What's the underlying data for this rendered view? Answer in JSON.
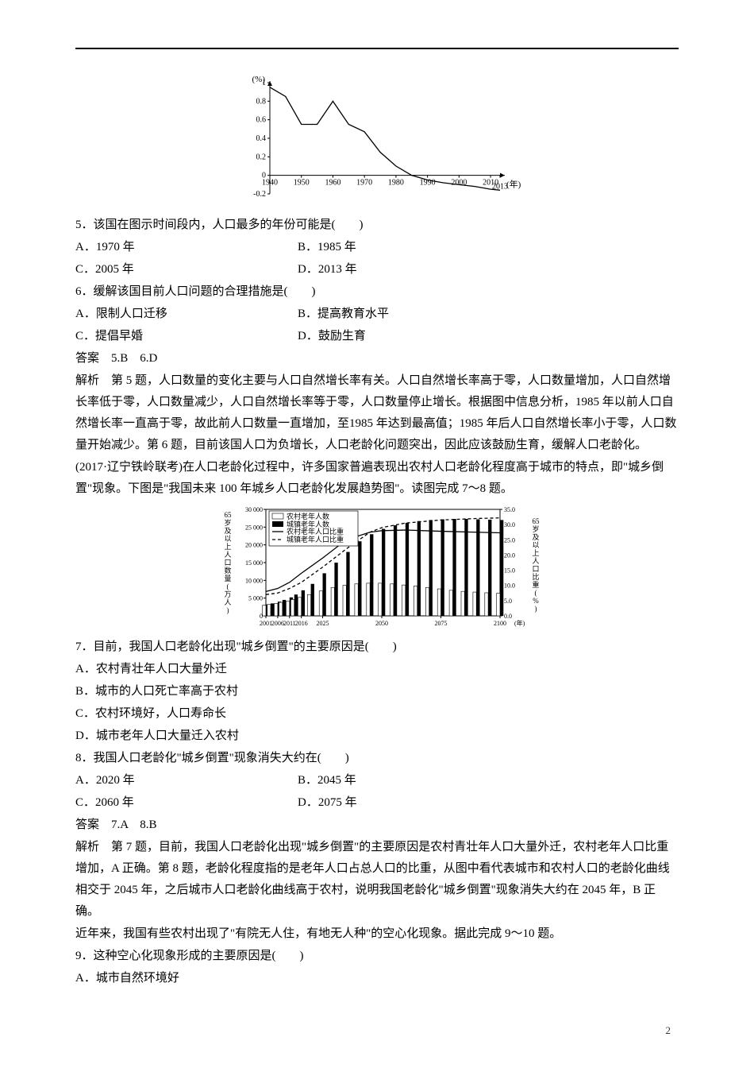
{
  "chart1": {
    "type": "line",
    "ylabel": "(%)",
    "xlabel": "(年)",
    "xlim": [
      1940,
      2013
    ],
    "ylim": [
      -0.2,
      1.0
    ],
    "xticks": [
      1940,
      1950,
      1960,
      1970,
      1980,
      1990,
      2000,
      2010,
      2013
    ],
    "xtick_labels": [
      "1940",
      "1950",
      "1960",
      "1970",
      "1980",
      "1990",
      "2000",
      "2010",
      "2013"
    ],
    "yticks": [
      -0.2,
      0,
      0.2,
      0.4,
      0.6,
      0.8,
      1.0
    ],
    "ytick_labels": [
      "-0.2",
      "0",
      "0.2",
      "0.4",
      "0.6",
      "0.8",
      "1"
    ],
    "points": [
      [
        1940,
        0.95
      ],
      [
        1945,
        0.85
      ],
      [
        1950,
        0.55
      ],
      [
        1955,
        0.55
      ],
      [
        1960,
        0.8
      ],
      [
        1965,
        0.55
      ],
      [
        1970,
        0.47
      ],
      [
        1975,
        0.25
      ],
      [
        1980,
        0.1
      ],
      [
        1985,
        0.0
      ],
      [
        1990,
        -0.05
      ],
      [
        1995,
        -0.08
      ],
      [
        2000,
        -0.1
      ],
      [
        2005,
        -0.12
      ],
      [
        2010,
        -0.15
      ],
      [
        2013,
        -0.16
      ]
    ],
    "line_color": "#000000",
    "axis_color": "#000000",
    "tick_fontsize": 10,
    "label_fontsize": 11,
    "line_width": 1.3
  },
  "q5": {
    "stem": "5．该国在图示时间段内，人口最多的年份可能是(　　)",
    "optA": "A．1970 年",
    "optB": "B．1985 年",
    "optC": "C．2005 年",
    "optD": "D．2013 年"
  },
  "q6": {
    "stem": "6．缓解该国目前人口问题的合理措施是(　　)",
    "optA": "A．限制人口迁移",
    "optB": "B．提高教育水平",
    "optC": "C．提倡早婚",
    "optD": "D．鼓励生育"
  },
  "ans56": "答案　5.B　6.D",
  "exp56": "解析　第 5 题，人口数量的变化主要与人口自然增长率有关。人口自然增长率高于零，人口数量增加，人口自然增长率低于零，人口数量减少，人口自然增长率等于零，人口数量停止增长。根据图中信息分析，1985 年以前人口自然增长率一直高于零，故此前人口数量一直增加，至1985 年达到最高值；1985 年后人口自然增长率小于零，人口数量开始减少。第 6 题，目前该国人口为负增长，人口老龄化问题突出，因此应该鼓励生育，缓解人口老龄化。",
  "intro78": "(2017·辽宁铁岭联考)在人口老龄化过程中，许多国家普遍表现出农村人口老龄化程度高于城市的特点，即\"城乡倒置\"现象。下图是\"我国未来 100 年城乡人口老龄化发展趋势图\"。读图完成 7～8 题。",
  "chart2": {
    "type": "combo-bar-line",
    "left_axis_label_lines": [
      "65",
      "岁",
      "及",
      "以",
      "上",
      "人",
      "口",
      "数",
      "量",
      "(",
      "万",
      "人",
      ")"
    ],
    "right_axis_label_lines": [
      "65",
      "岁",
      "及",
      "以",
      "上",
      "人",
      "口",
      "比",
      "重",
      "(",
      "%",
      ")"
    ],
    "left_ylim": [
      0,
      30000
    ],
    "left_yticks": [
      0,
      5000,
      10000,
      15000,
      20000,
      25000,
      30000
    ],
    "left_ytick_labels": [
      "0",
      "5 000",
      "10 000",
      "15 000",
      "20 000",
      "25 000",
      "30 000"
    ],
    "right_ylim": [
      0,
      35
    ],
    "right_yticks": [
      0,
      5,
      10,
      15,
      20,
      25,
      30,
      35
    ],
    "right_ytick_labels": [
      "0.0",
      "5.0",
      "10.0",
      "15.0",
      "20.0",
      "25.0",
      "30.0",
      "35.0"
    ],
    "xticks": [
      2001,
      2006,
      2011,
      2016,
      2025,
      2050,
      2075,
      2100
    ],
    "xtick_labels": [
      "2001",
      "2006",
      "2011",
      "2016",
      "2025",
      "2050",
      "2075",
      "2100"
    ],
    "xlabel_suffix": "(年)",
    "legend": [
      "农村老年人数",
      "城镇老年人数",
      "农村老年人口比重",
      "城镇老年人口比重"
    ],
    "bars_rural": [
      [
        2001,
        3000
      ],
      [
        2003,
        3200
      ],
      [
        2006,
        3500
      ],
      [
        2008,
        3800
      ],
      [
        2011,
        4200
      ],
      [
        2013,
        4600
      ],
      [
        2016,
        5200
      ],
      [
        2020,
        6000
      ],
      [
        2025,
        7000
      ],
      [
        2030,
        8000
      ],
      [
        2035,
        8600
      ],
      [
        2040,
        9000
      ],
      [
        2045,
        9200
      ],
      [
        2050,
        9200
      ],
      [
        2055,
        9000
      ],
      [
        2060,
        8700
      ],
      [
        2065,
        8400
      ],
      [
        2070,
        8000
      ],
      [
        2075,
        7600
      ],
      [
        2080,
        7200
      ],
      [
        2085,
        6900
      ],
      [
        2090,
        6700
      ],
      [
        2095,
        6500
      ],
      [
        2100,
        6400
      ]
    ],
    "bars_urban": [
      [
        2001,
        3200
      ],
      [
        2003,
        3500
      ],
      [
        2006,
        4000
      ],
      [
        2008,
        4500
      ],
      [
        2011,
        5200
      ],
      [
        2013,
        6000
      ],
      [
        2016,
        7200
      ],
      [
        2020,
        9000
      ],
      [
        2025,
        12000
      ],
      [
        2030,
        15000
      ],
      [
        2035,
        18000
      ],
      [
        2040,
        21000
      ],
      [
        2045,
        23000
      ],
      [
        2050,
        24500
      ],
      [
        2055,
        25500
      ],
      [
        2060,
        26200
      ],
      [
        2065,
        26700
      ],
      [
        2070,
        27000
      ],
      [
        2075,
        27200
      ],
      [
        2080,
        27300
      ],
      [
        2085,
        27300
      ],
      [
        2090,
        27200
      ],
      [
        2095,
        27100
      ],
      [
        2100,
        27000
      ]
    ],
    "line_rural_pct": [
      [
        2001,
        8
      ],
      [
        2006,
        9
      ],
      [
        2011,
        11
      ],
      [
        2016,
        14
      ],
      [
        2025,
        19
      ],
      [
        2035,
        25
      ],
      [
        2045,
        27.5
      ],
      [
        2050,
        28
      ],
      [
        2060,
        28.2
      ],
      [
        2075,
        27.8
      ],
      [
        2090,
        27.5
      ],
      [
        2100,
        27.3
      ]
    ],
    "line_urban_pct": [
      [
        2001,
        7
      ],
      [
        2006,
        7.5
      ],
      [
        2011,
        9
      ],
      [
        2016,
        11
      ],
      [
        2025,
        16
      ],
      [
        2035,
        22
      ],
      [
        2045,
        27.5
      ],
      [
        2050,
        29
      ],
      [
        2060,
        30.5
      ],
      [
        2075,
        31.5
      ],
      [
        2090,
        32
      ],
      [
        2100,
        32.2
      ]
    ],
    "bar_rural_fill": "#ffffff",
    "bar_rural_stroke": "#000000",
    "bar_urban_fill": "#000000",
    "line_rural_color": "#000000",
    "line_urban_color": "#000000",
    "line_urban_dash": "4,3",
    "axis_color": "#000000",
    "tick_fontsize": 8,
    "legend_fontsize": 9
  },
  "q7": {
    "stem": "7．目前，我国人口老龄化出现\"城乡倒置\"的主要原因是(　　)",
    "optA": "A．农村青壮年人口大量外迁",
    "optB": "B．城市的人口死亡率高于农村",
    "optC": "C．农村环境好，人口寿命长",
    "optD": "D．城市老年人口大量迁入农村"
  },
  "q8": {
    "stem": "8．我国人口老龄化\"城乡倒置\"现象消失大约在(　　)",
    "optA": "A．2020 年",
    "optB": "B．2045 年",
    "optC": "C．2060 年",
    "optD": "D．2075 年"
  },
  "ans78": "答案　7.A　8.B",
  "exp78": "解析　第 7 题，目前，我国人口老龄化出现\"城乡倒置\"的主要原因是农村青壮年人口大量外迁，农村老年人口比重增加，A 正确。第 8 题，老龄化程度指的是老年人口占总人口的比重，从图中看代表城市和农村人口的老龄化曲线相交于 2045 年，之后城市人口老龄化曲线高于农村，说明我国老龄化\"城乡倒置\"现象消失大约在 2045 年，B 正确。",
  "intro9": "近年来，我国有些农村出现了\"有院无人住，有地无人种\"的空心化现象。据此完成 9～10 题。",
  "q9": {
    "stem": "9．这种空心化现象形成的主要原因是(　　)",
    "optA": "A．城市自然环境好"
  },
  "page_num": "2"
}
